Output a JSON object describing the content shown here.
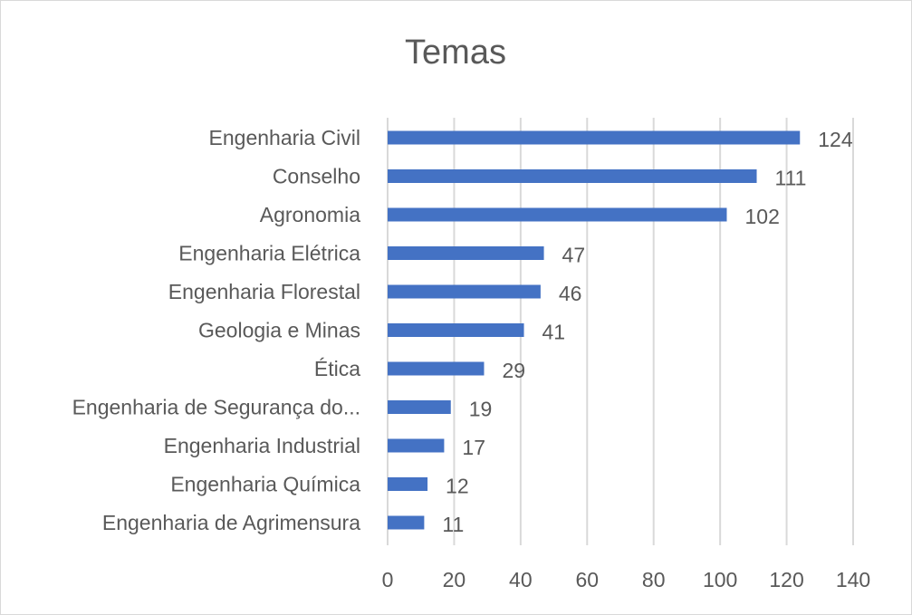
{
  "chart_data": {
    "type": "bar",
    "orientation": "horizontal",
    "title": "Temas",
    "categories": [
      "Engenharia Civil",
      "Conselho",
      "Agronomia",
      "Engenharia Elétrica",
      "Engenharia Florestal",
      "Geologia e Minas",
      "Ética",
      "Engenharia de Segurança do...",
      "Engenharia Industrial",
      "Engenharia Química",
      "Engenharia de Agrimensura"
    ],
    "values": [
      124,
      111,
      102,
      47,
      46,
      41,
      29,
      19,
      17,
      12,
      11
    ],
    "xlim": [
      0,
      140
    ],
    "xticks": [
      "0",
      "20",
      "40",
      "60",
      "80",
      "100",
      "120",
      "140"
    ],
    "grid": true,
    "legend": "none",
    "data_labels": true,
    "bar_color": "#4472c4"
  }
}
